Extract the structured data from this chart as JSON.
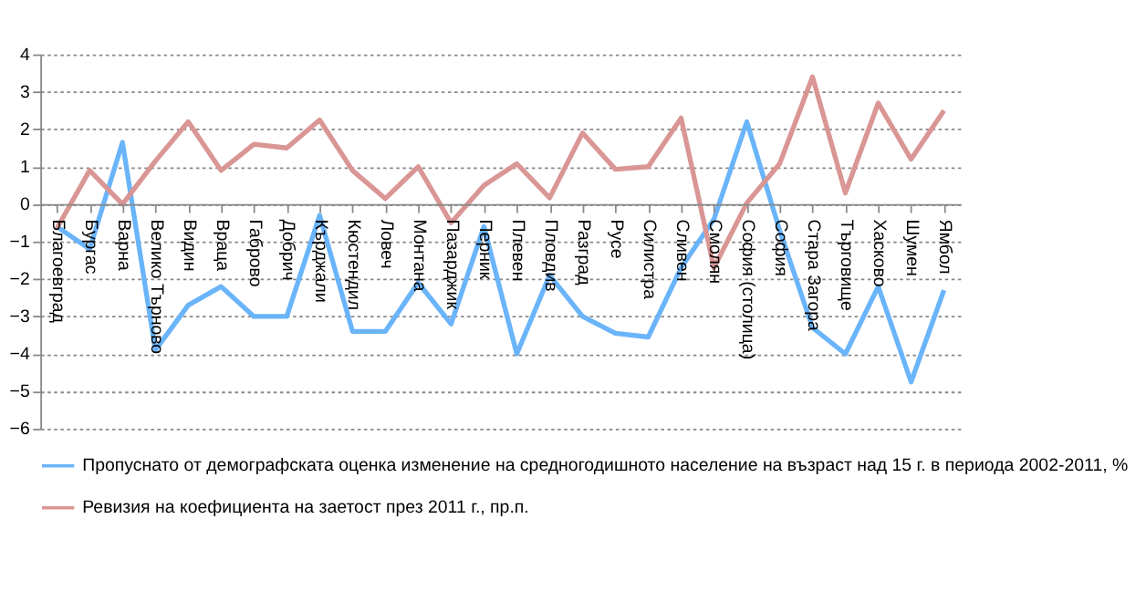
{
  "chart_data": {
    "type": "line",
    "categories": [
      "Благоевград",
      "Бургас",
      "Варна",
      "Велико Търново",
      "Видин",
      "Враца",
      "Габрово",
      "Добрич",
      "Кърджали",
      "Кюстендил",
      "Ловеч",
      "Монтана",
      "Пазарджик",
      "Перник",
      "Плевен",
      "Пловдив",
      "Разград",
      "Русе",
      "Силистра",
      "Сливен",
      "Смолян",
      "София (столица)",
      "София",
      "Стара Загора",
      "Търговище",
      "Хасково",
      "Шумен",
      "Ямбол"
    ],
    "series": [
      {
        "name": "Пропуснато от демографската оценка изменение на средногодишното население на възраст над 15 г. в периода 2002-2011, %",
        "color": "#6ab4fa",
        "values": [
          -0.6,
          -1.2,
          1.65,
          -3.9,
          -2.7,
          -2.2,
          -3.0,
          -3.0,
          -0.3,
          -3.4,
          -3.4,
          -2.1,
          -3.2,
          -0.6,
          -4.0,
          -1.9,
          -3.0,
          -3.45,
          -3.55,
          -1.7,
          -0.4,
          2.2,
          -0.7,
          -3.3,
          -4.0,
          -2.2,
          -4.75,
          -2.3
        ]
      },
      {
        "name": "Ревизия на коефициента на заетост през 2011 г., пр.п.",
        "color": "#d99694",
        "values": [
          -0.65,
          0.9,
          0.0,
          1.15,
          2.2,
          0.9,
          1.6,
          1.5,
          2.25,
          0.9,
          0.15,
          1.0,
          -0.5,
          0.5,
          1.08,
          0.17,
          1.9,
          0.93,
          1.0,
          2.3,
          -1.7,
          0.03,
          1.08,
          3.4,
          0.3,
          2.7,
          1.2,
          2.5
        ]
      }
    ],
    "ylim": [
      -6,
      4
    ],
    "yticks": [
      -6,
      -5,
      -4,
      -3,
      -2,
      -1,
      0,
      1,
      2,
      3,
      4
    ],
    "grid": "y",
    "legend": "bottom",
    "marker": "none",
    "line_style": "solid"
  }
}
